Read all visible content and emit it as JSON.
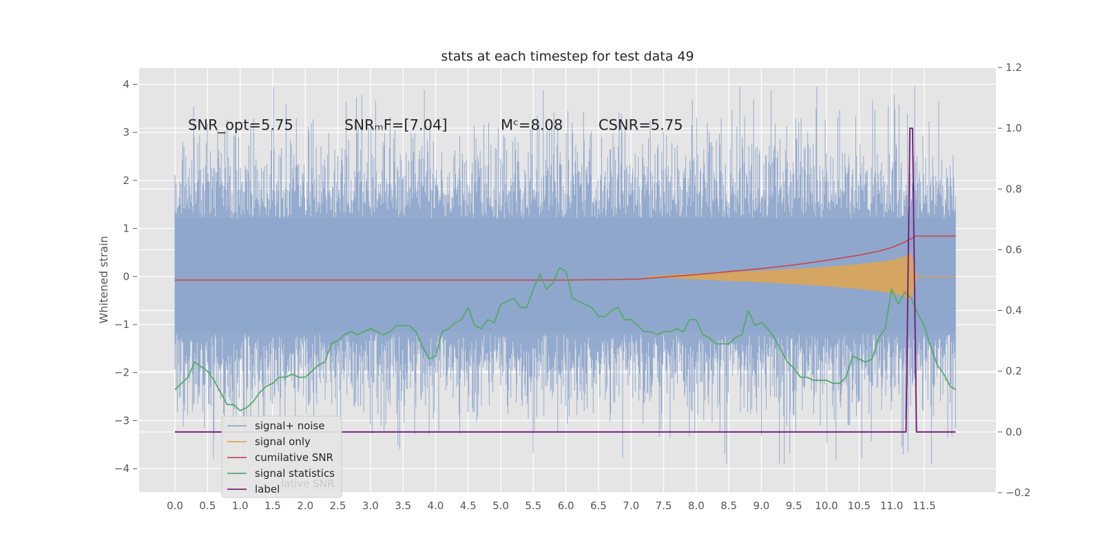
{
  "chart_data": {
    "type": "line",
    "title": "stats at each timestep for test data 49",
    "ylabel": "Whitened strain",
    "xlabel": "",
    "xlim": [
      -0.55,
      12.6
    ],
    "ylim": [
      -4.5,
      4.35
    ],
    "y2lim": [
      -0.2,
      1.2
    ],
    "xticks": [
      "0.0",
      "0.5",
      "1.0",
      "1.5",
      "2.0",
      "2.5",
      "3.0",
      "3.5",
      "4.0",
      "4.5",
      "5.0",
      "5.5",
      "6.0",
      "6.5",
      "7.0",
      "7.5",
      "8.0",
      "8.5",
      "9.0",
      "9.5",
      "10.0",
      "10.5",
      "11.0",
      "11.5"
    ],
    "xtick_values": [
      0.0,
      0.5,
      1.0,
      1.5,
      2.0,
      2.5,
      3.0,
      3.5,
      4.0,
      4.5,
      5.0,
      5.5,
      6.0,
      6.5,
      7.0,
      7.5,
      8.0,
      8.5,
      9.0,
      9.5,
      10.0,
      10.5,
      11.0,
      11.5
    ],
    "yticks": [
      "−4",
      "−3",
      "−2",
      "−1",
      "0",
      "1",
      "2",
      "3",
      "4"
    ],
    "ytick_values": [
      -4,
      -3,
      -2,
      -1,
      0,
      1,
      2,
      3,
      4
    ],
    "y2ticks": [
      "−0.2",
      "0.0",
      "0.2",
      "0.4",
      "0.6",
      "0.8",
      "1.0",
      "1.2"
    ],
    "y2tick_values": [
      -0.2,
      0.0,
      0.2,
      0.4,
      0.6,
      0.8,
      1.0,
      1.2
    ],
    "grid": true,
    "legend_position": "lower-left",
    "annotations": [
      {
        "text": "SNR_opt=5.75",
        "x": 0.2,
        "y": 3.05
      },
      {
        "text": "SNRₘF=[7.04]",
        "x": 2.6,
        "y": 3.05
      },
      {
        "text": "Mᶜ=8.08",
        "x": 5.0,
        "y": 3.05
      },
      {
        "text": "CSNR=5.75",
        "x": 6.5,
        "y": 3.05
      }
    ],
    "series": [
      {
        "name": "signal+ noise",
        "axis": "left",
        "color": "#8fa6cc",
        "noise_band": {
          "x_start": 0.0,
          "x_end": 11.98,
          "typical_low": -2.1,
          "typical_high": 2.2,
          "extreme_low": -3.9,
          "extreme_high": 3.95
        }
      },
      {
        "name": "signal only",
        "axis": "left",
        "color": "#e0a64e",
        "x": [
          7.1,
          8.0,
          9.0,
          10.0,
          10.5,
          11.0,
          11.2,
          11.3,
          11.35,
          11.4
        ],
        "amplitude": [
          0.0,
          0.06,
          0.12,
          0.2,
          0.26,
          0.34,
          0.42,
          0.5,
          0.2,
          0.0
        ]
      },
      {
        "name": "cumilative SNR",
        "axis": "right",
        "color": "#c44e52",
        "x": [
          0.0,
          5.0,
          6.0,
          7.1,
          7.5,
          8.0,
          8.5,
          9.0,
          9.5,
          10.0,
          10.5,
          10.8,
          11.0,
          11.2,
          11.37,
          11.98
        ],
        "y": [
          0.5,
          0.5,
          0.5,
          0.503,
          0.51,
          0.518,
          0.528,
          0.538,
          0.55,
          0.565,
          0.582,
          0.595,
          0.607,
          0.625,
          0.645,
          0.645
        ]
      },
      {
        "name": "signal statistics",
        "axis": "right",
        "color": "#55a868",
        "x": [
          0.0,
          0.2,
          0.3,
          0.5,
          0.6,
          0.7,
          0.8,
          0.9,
          1.0,
          1.1,
          1.2,
          1.3,
          1.4,
          1.5,
          1.6,
          1.7,
          1.8,
          1.9,
          2.0,
          2.1,
          2.2,
          2.3,
          2.4,
          2.5,
          2.6,
          2.7,
          2.8,
          2.9,
          3.0,
          3.1,
          3.2,
          3.3,
          3.4,
          3.5,
          3.6,
          3.7,
          3.8,
          3.9,
          4.0,
          4.1,
          4.2,
          4.3,
          4.4,
          4.5,
          4.6,
          4.7,
          4.8,
          4.9,
          5.0,
          5.1,
          5.2,
          5.3,
          5.4,
          5.5,
          5.6,
          5.7,
          5.8,
          5.9,
          6.0,
          6.1,
          6.2,
          6.3,
          6.4,
          6.5,
          6.6,
          6.7,
          6.8,
          6.9,
          7.0,
          7.1,
          7.2,
          7.3,
          7.4,
          7.5,
          7.6,
          7.7,
          7.8,
          7.9,
          8.0,
          8.1,
          8.2,
          8.3,
          8.4,
          8.5,
          8.6,
          8.7,
          8.8,
          8.9,
          9.0,
          9.1,
          9.2,
          9.3,
          9.4,
          9.5,
          9.6,
          9.7,
          9.8,
          9.9,
          10.0,
          10.1,
          10.2,
          10.3,
          10.4,
          10.5,
          10.6,
          10.7,
          10.8,
          10.9,
          11.0,
          11.1,
          11.2,
          11.3,
          11.4,
          11.5,
          11.6,
          11.7,
          11.8,
          11.9,
          11.98
        ],
        "y": [
          0.14,
          0.18,
          0.23,
          0.2,
          0.17,
          0.13,
          0.09,
          0.09,
          0.07,
          0.08,
          0.1,
          0.13,
          0.15,
          0.16,
          0.18,
          0.18,
          0.19,
          0.18,
          0.18,
          0.2,
          0.22,
          0.23,
          0.29,
          0.3,
          0.32,
          0.33,
          0.32,
          0.33,
          0.34,
          0.33,
          0.32,
          0.33,
          0.35,
          0.35,
          0.35,
          0.33,
          0.28,
          0.24,
          0.25,
          0.33,
          0.34,
          0.36,
          0.37,
          0.41,
          0.35,
          0.34,
          0.37,
          0.36,
          0.42,
          0.43,
          0.44,
          0.41,
          0.41,
          0.47,
          0.52,
          0.47,
          0.49,
          0.54,
          0.53,
          0.44,
          0.43,
          0.42,
          0.41,
          0.38,
          0.38,
          0.4,
          0.41,
          0.37,
          0.37,
          0.35,
          0.33,
          0.33,
          0.32,
          0.33,
          0.33,
          0.34,
          0.33,
          0.37,
          0.37,
          0.32,
          0.31,
          0.29,
          0.29,
          0.29,
          0.31,
          0.32,
          0.4,
          0.35,
          0.36,
          0.34,
          0.31,
          0.27,
          0.23,
          0.21,
          0.18,
          0.18,
          0.17,
          0.17,
          0.17,
          0.16,
          0.16,
          0.18,
          0.25,
          0.24,
          0.23,
          0.24,
          0.31,
          0.34,
          0.47,
          0.42,
          0.46,
          0.44,
          0.39,
          0.35,
          0.28,
          0.22,
          0.19,
          0.15,
          0.14
        ]
      },
      {
        "name": "label",
        "axis": "right",
        "color": "#7b1f7e",
        "x": [
          0.0,
          11.22,
          11.28,
          11.32,
          11.38,
          11.98
        ],
        "y": [
          0.0,
          0.0,
          1.0,
          1.0,
          0.0,
          0.0
        ]
      }
    ],
    "legend": [
      "signal+ noise",
      "signal only",
      "cumilative SNR",
      "signal statistics",
      "label"
    ],
    "legend_ghost_text": "lative SNR"
  }
}
